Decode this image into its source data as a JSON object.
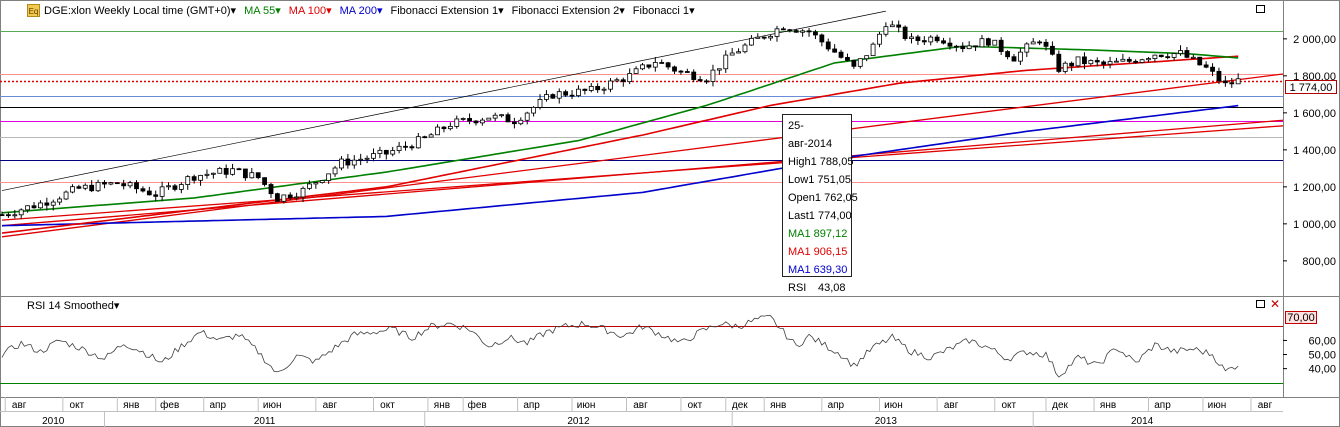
{
  "toolbar": {
    "icon_label": "Eq",
    "symbol": "DGE:xlon Weekly Local time (GMT+0)",
    "indicators": [
      {
        "label": "MA 55",
        "color": "#008000"
      },
      {
        "label": "MA 100",
        "color": "#e00000"
      },
      {
        "label": "MA 200",
        "color": "#0000cc"
      },
      {
        "label": "Fibonacci Extension 1",
        "color": "#000000"
      },
      {
        "label": "Fibonacci Extension 2",
        "color": "#000000"
      },
      {
        "label": "Fibonacci 1",
        "color": "#000000"
      }
    ],
    "dropdown_glyph": "▾"
  },
  "rsi_panel": {
    "title": "RSI 14 Smoothed"
  },
  "tooltip": {
    "date": "25-авг-2014",
    "rows": [
      {
        "k": "High",
        "v": "1 788,05",
        "color": "#000000"
      },
      {
        "k": "Low",
        "v": "1 751,05",
        "color": "#000000"
      },
      {
        "k": "Open",
        "v": "1 762,05",
        "color": "#000000"
      },
      {
        "k": "Last",
        "v": "1 774,00",
        "color": "#000000"
      },
      {
        "k": "MA",
        "v": "1 897,12",
        "color": "#008000"
      },
      {
        "k": "MA",
        "v": "1 906,15",
        "color": "#e00000"
      },
      {
        "k": "MA",
        "v": "1 639,30",
        "color": "#0000cc"
      },
      {
        "k": "RSI",
        "v": "43,08",
        "color": "#000000"
      }
    ]
  },
  "last_price_label": "1 774,00",
  "rsi_level_label": "70,00",
  "chart_data": {
    "type": "candlestick",
    "price_axis": {
      "ticks": [
        800,
        1000,
        1200,
        1400,
        1600,
        1800,
        2000
      ],
      "tick_labels": [
        "800,00",
        "1 000,00",
        "1 200,00",
        "1 400,00",
        "1 600,00",
        "1 800,00",
        "2 000,00"
      ],
      "ylim": [
        610,
        2210
      ]
    },
    "rsi_axis": {
      "ticks": [
        40,
        50,
        60
      ],
      "tick_labels": [
        "40,00",
        "50,00",
        "60,00"
      ],
      "ylim": [
        22,
        88
      ],
      "levels": [
        70,
        30
      ]
    },
    "month_labels": [
      {
        "t": 0.5,
        "label": "авг"
      },
      {
        "t": 9.5,
        "label": "окт"
      },
      {
        "t": 18,
        "label": "янв"
      },
      {
        "t": 24,
        "label": "фев"
      },
      {
        "t": 31.5,
        "label": "апр"
      },
      {
        "t": 40,
        "label": "июн"
      },
      {
        "t": 49,
        "label": "авг"
      },
      {
        "t": 58,
        "label": "окт"
      },
      {
        "t": 66.5,
        "label": "янв"
      },
      {
        "t": 72,
        "label": "фев"
      },
      {
        "t": 80.5,
        "label": "апр"
      },
      {
        "t": 89,
        "label": "июн"
      },
      {
        "t": 97.5,
        "label": "авг"
      },
      {
        "t": 106,
        "label": "окт"
      },
      {
        "t": 113,
        "label": "дек"
      },
      {
        "t": 119,
        "label": "янв"
      },
      {
        "t": 128,
        "label": "апр"
      },
      {
        "t": 137,
        "label": "июн"
      },
      {
        "t": 146,
        "label": "авг"
      },
      {
        "t": 155,
        "label": "окт"
      },
      {
        "t": 163,
        "label": "дек"
      },
      {
        "t": 170.5,
        "label": "янв"
      },
      {
        "t": 179,
        "label": "апр"
      },
      {
        "t": 187.5,
        "label": "июн"
      },
      {
        "t": 195,
        "label": "авг"
      }
    ],
    "year_labels": [
      {
        "t": 8,
        "label": "2010"
      },
      {
        "t": 41,
        "label": "2011"
      },
      {
        "t": 90,
        "label": "2012"
      },
      {
        "t": 138,
        "label": "2013"
      },
      {
        "t": 178,
        "label": "2014"
      }
    ],
    "year_dividers": [
      16,
      66,
      114,
      161
    ],
    "close_anchors": [
      [
        0,
        1050
      ],
      [
        6,
        1110
      ],
      [
        12,
        1190
      ],
      [
        18,
        1220
      ],
      [
        24,
        1160
      ],
      [
        30,
        1260
      ],
      [
        36,
        1290
      ],
      [
        40,
        1250
      ],
      [
        43,
        1140
      ],
      [
        47,
        1180
      ],
      [
        53,
        1330
      ],
      [
        60,
        1380
      ],
      [
        66,
        1460
      ],
      [
        70,
        1540
      ],
      [
        76,
        1580
      ],
      [
        80,
        1560
      ],
      [
        86,
        1700
      ],
      [
        92,
        1720
      ],
      [
        98,
        1800
      ],
      [
        102,
        1880
      ],
      [
        106,
        1820
      ],
      [
        110,
        1790
      ],
      [
        114,
        1920
      ],
      [
        118,
        2000
      ],
      [
        122,
        2070
      ],
      [
        126,
        2040
      ],
      [
        130,
        1930
      ],
      [
        133,
        1840
      ],
      [
        136,
        1960
      ],
      [
        138,
        2090
      ],
      [
        142,
        1990
      ],
      [
        146,
        2010
      ],
      [
        150,
        1960
      ],
      [
        154,
        1990
      ],
      [
        158,
        1900
      ],
      [
        162,
        2000
      ],
      [
        165,
        1840
      ],
      [
        168,
        1880
      ],
      [
        172,
        1860
      ],
      [
        176,
        1880
      ],
      [
        180,
        1920
      ],
      [
        184,
        1920
      ],
      [
        188,
        1840
      ],
      [
        191,
        1750
      ],
      [
        193,
        1774
      ]
    ],
    "ma55_anchors": [
      [
        0,
        1060
      ],
      [
        30,
        1140
      ],
      [
        60,
        1280
      ],
      [
        90,
        1450
      ],
      [
        110,
        1640
      ],
      [
        130,
        1870
      ],
      [
        150,
        1960
      ],
      [
        170,
        1940
      ],
      [
        185,
        1920
      ],
      [
        193,
        1897
      ]
    ],
    "ma100_anchors": [
      [
        0,
        950
      ],
      [
        60,
        1200
      ],
      [
        100,
        1480
      ],
      [
        120,
        1640
      ],
      [
        140,
        1760
      ],
      [
        160,
        1830
      ],
      [
        193,
        1906
      ]
    ],
    "ma200_anchors": [
      [
        0,
        990
      ],
      [
        60,
        1040
      ],
      [
        100,
        1170
      ],
      [
        130,
        1350
      ],
      [
        160,
        1500
      ],
      [
        193,
        1639
      ]
    ],
    "fib_channel_top": {
      "from": [
        0,
        1180
      ],
      "to": [
        138,
        2150
      ]
    },
    "fib_red_lines": [
      {
        "from": [
          0,
          930
        ],
        "to": [
          200,
          1810
        ]
      },
      {
        "from": [
          0,
          990
        ],
        "to": [
          200,
          1560
        ]
      },
      {
        "from": [
          0,
          1020
        ],
        "to": [
          200,
          1530
        ]
      }
    ],
    "fib_levels": [
      {
        "v": 2045,
        "color": "#58a858"
      },
      {
        "v": 1808,
        "color": "#ff9090"
      },
      {
        "v": 1774,
        "color": "#e00000",
        "dotted": true
      },
      {
        "v": 1690,
        "color": "#6a8bd6"
      },
      {
        "v": 1632,
        "color": "#000000"
      },
      {
        "v": 1555,
        "color": "#e000e0"
      },
      {
        "v": 1470,
        "color": "#b8b8b8"
      },
      {
        "v": 1345,
        "color": "#000080"
      },
      {
        "v": 1225,
        "color": "#ff9090"
      }
    ],
    "rsi_anchors": [
      [
        0,
        50
      ],
      [
        3,
        58
      ],
      [
        6,
        52
      ],
      [
        9,
        60
      ],
      [
        12,
        55
      ],
      [
        16,
        47
      ],
      [
        19,
        58
      ],
      [
        22,
        52
      ],
      [
        25,
        44
      ],
      [
        28,
        56
      ],
      [
        31,
        66
      ],
      [
        34,
        60
      ],
      [
        37,
        64
      ],
      [
        40,
        52
      ],
      [
        43,
        36
      ],
      [
        46,
        49
      ],
      [
        49,
        45
      ],
      [
        52,
        55
      ],
      [
        55,
        64
      ],
      [
        58,
        66
      ],
      [
        61,
        68
      ],
      [
        64,
        62
      ],
      [
        67,
        70
      ],
      [
        70,
        72
      ],
      [
        73,
        68
      ],
      [
        76,
        56
      ],
      [
        79,
        62
      ],
      [
        82,
        58
      ],
      [
        85,
        66
      ],
      [
        88,
        70
      ],
      [
        91,
        72
      ],
      [
        94,
        68
      ],
      [
        97,
        63
      ],
      [
        100,
        70
      ],
      [
        103,
        64
      ],
      [
        106,
        58
      ],
      [
        109,
        66
      ],
      [
        112,
        72
      ],
      [
        115,
        70
      ],
      [
        118,
        75
      ],
      [
        120,
        76
      ],
      [
        122,
        66
      ],
      [
        124,
        56
      ],
      [
        126,
        63
      ],
      [
        128,
        58
      ],
      [
        131,
        50
      ],
      [
        133,
        42
      ],
      [
        136,
        55
      ],
      [
        139,
        62
      ],
      [
        142,
        52
      ],
      [
        145,
        48
      ],
      [
        148,
        54
      ],
      [
        151,
        60
      ],
      [
        154,
        55
      ],
      [
        157,
        47
      ],
      [
        160,
        52
      ],
      [
        163,
        50
      ],
      [
        165,
        35
      ],
      [
        168,
        48
      ],
      [
        171,
        42
      ],
      [
        174,
        55
      ],
      [
        177,
        44
      ],
      [
        180,
        57
      ],
      [
        183,
        52
      ],
      [
        186,
        54
      ],
      [
        189,
        50
      ],
      [
        191,
        38
      ],
      [
        193,
        43
      ]
    ],
    "total_weeks": 200,
    "seed": 7
  }
}
